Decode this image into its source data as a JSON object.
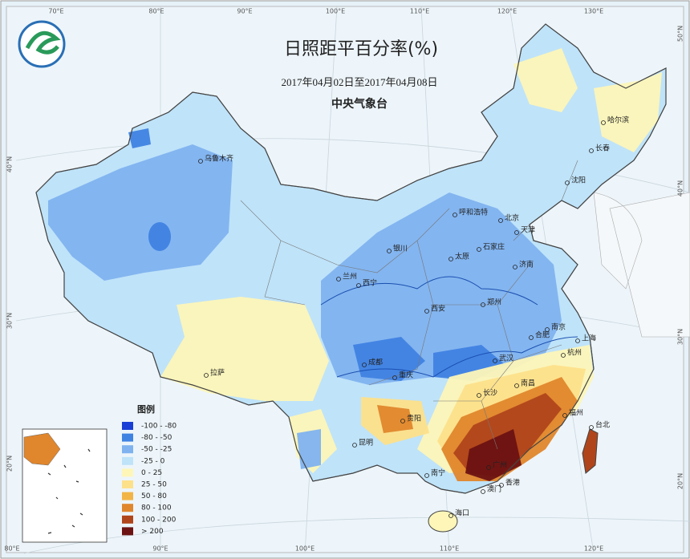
{
  "header": {
    "title": "日照距平百分率(%)",
    "period": "2017年04月02日至2017年04月08日",
    "agency": "中央气象台"
  },
  "legend": {
    "title": "图例",
    "items": [
      {
        "label": "-100 - -80",
        "color": "#1a3fd6"
      },
      {
        "label": "-80 - -50",
        "color": "#3f82e2"
      },
      {
        "label": "-50 - -25",
        "color": "#7fb2ef"
      },
      {
        "label": "-25 - 0",
        "color": "#bfe3f9"
      },
      {
        "label": "0 - 25",
        "color": "#fdf6b8"
      },
      {
        "label": "25 - 50",
        "color": "#fde08a"
      },
      {
        "label": "50 - 80",
        "color": "#f2b446"
      },
      {
        "label": "80 - 100",
        "color": "#e0862c"
      },
      {
        "label": "100 - 200",
        "color": "#b0451b"
      },
      {
        "label": "> 200",
        "color": "#6c1212"
      }
    ]
  },
  "graticule": {
    "top": [
      "70°E",
      "80°E",
      "90°E",
      "100°E",
      "110°E",
      "120°E",
      "130°E"
    ],
    "bottom": [
      "80°E",
      "90°E",
      "100°E",
      "110°E",
      "120°E"
    ],
    "left": [
      "40°N",
      "30°N",
      "20°N"
    ],
    "right": [
      "50°N",
      "40°N",
      "30°N",
      "20°N"
    ]
  },
  "cities": [
    "乌鲁木齐",
    "哈尔滨",
    "长春",
    "沈阳",
    "呼和浩特",
    "北京",
    "天津",
    "石家庄",
    "太原",
    "济南",
    "银川",
    "兰州",
    "西宁",
    "西安",
    "郑州",
    "合肥",
    "南京",
    "上海",
    "杭州",
    "武汉",
    "成都",
    "重庆",
    "长沙",
    "南昌",
    "福州",
    "贵阳",
    "昆明",
    "南宁",
    "广州",
    "香港",
    "澳门",
    "海口",
    "台北",
    "拉萨"
  ]
}
